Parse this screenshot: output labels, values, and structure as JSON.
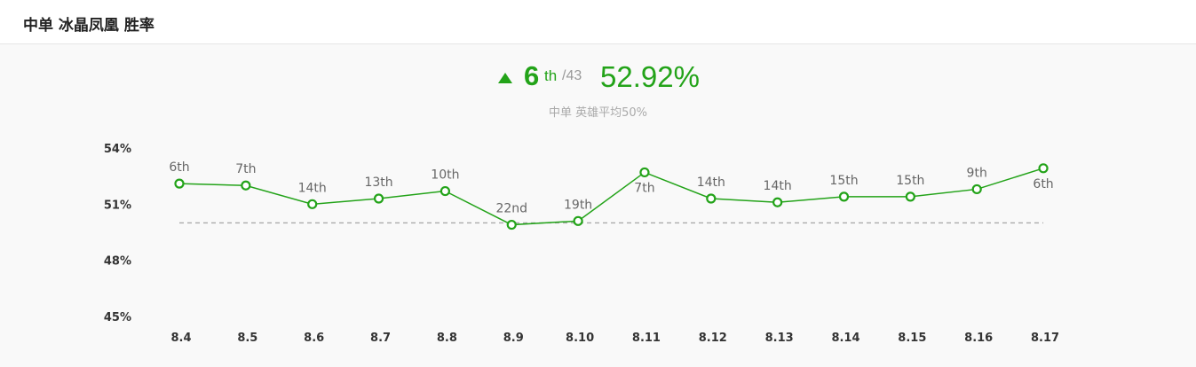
{
  "header": {
    "title": "中单 冰晶凤凰 胜率"
  },
  "summary": {
    "rank": "6",
    "rank_suffix": "th",
    "rank_total": "/43",
    "winrate": "52.92%",
    "caption": "中单 英雄平均50%",
    "trend_icon": "triangle-up-icon"
  },
  "colors": {
    "accent": "#23a319",
    "reference_line": "#aaaaaa"
  },
  "chart_data": {
    "type": "line",
    "title": "",
    "xlabel": "",
    "ylabel": "",
    "categories": [
      "8.4",
      "8.5",
      "8.6",
      "8.7",
      "8.8",
      "8.9",
      "8.10",
      "8.11",
      "8.12",
      "8.13",
      "8.14",
      "8.15",
      "8.16",
      "8.17"
    ],
    "series": [
      {
        "values": [
          52.1,
          52.0,
          51.0,
          51.3,
          51.7,
          49.9,
          50.1,
          52.7,
          51.3,
          51.1,
          51.4,
          51.4,
          51.8,
          52.92
        ],
        "labels": [
          "6th",
          "7th",
          "14th",
          "13th",
          "10th",
          "22nd",
          "19th",
          "7th",
          "14th",
          "14th",
          "15th",
          "15th",
          "9th",
          "6th"
        ]
      }
    ],
    "reference_line": 50,
    "ylim": [
      45,
      54
    ],
    "yticks": [
      54,
      51,
      48,
      45
    ],
    "ytick_labels": [
      "54%",
      "51%",
      "48%",
      "45%"
    ],
    "grid": false,
    "legend": "none"
  }
}
